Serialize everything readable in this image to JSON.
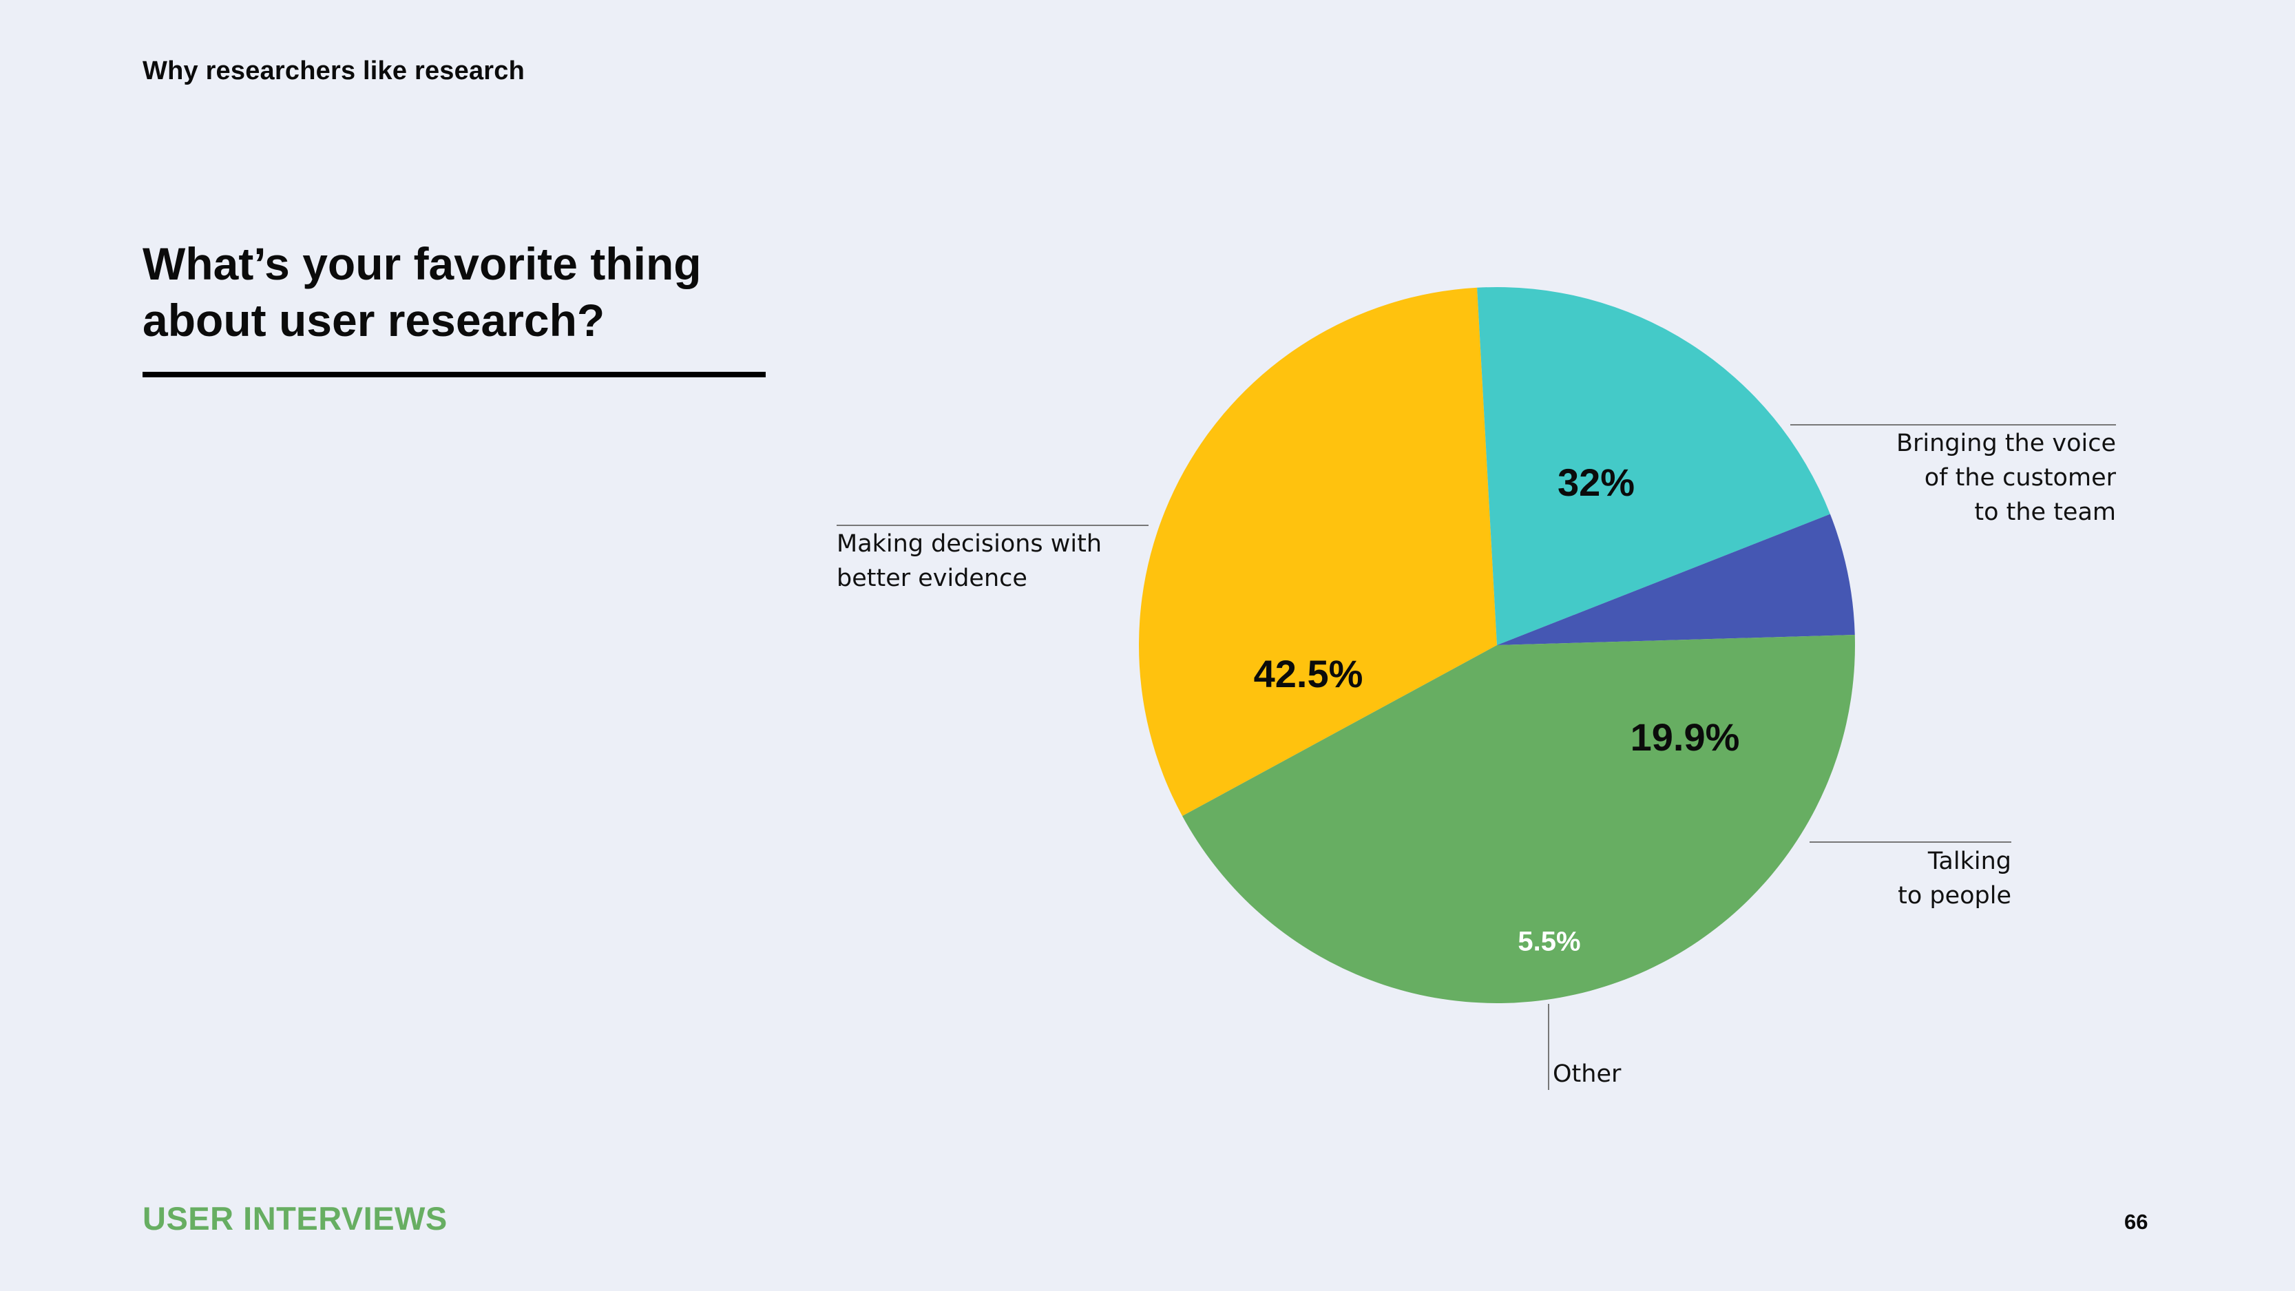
{
  "header": {
    "section_label": "Why researchers like research"
  },
  "chart_question": "What’s your favorite thing about user research?",
  "footer": {
    "brand": "USER INTERVIEWS",
    "page_number": "66"
  },
  "colors": {
    "background": "#ECEFF7",
    "brand_green": "#67AE62"
  },
  "chart_data": {
    "type": "pie",
    "unit": "%",
    "slices": [
      {
        "value": 32,
        "value_label": "32%",
        "category_lines": [
          "Bringing the voice",
          "of the customer",
          "to the team"
        ],
        "color": "#FFC20E",
        "value_label_color": "#0b0b0b"
      },
      {
        "value": 19.9,
        "value_label": "19.9%",
        "category_lines": [
          "Talking",
          "to people"
        ],
        "color": "#44CAC8",
        "value_label_color": "#0b0b0b"
      },
      {
        "value": 5.5,
        "value_label": "5.5%",
        "category_lines": [
          "Other"
        ],
        "color": "#4557B3",
        "value_label_color": "#FFFFFF"
      },
      {
        "value": 42.5,
        "value_label": "42.5%",
        "category_lines": [
          "Making decisions with",
          "better evidence"
        ],
        "color": "#67AE62",
        "value_label_color": "#0b0b0b"
      }
    ]
  }
}
